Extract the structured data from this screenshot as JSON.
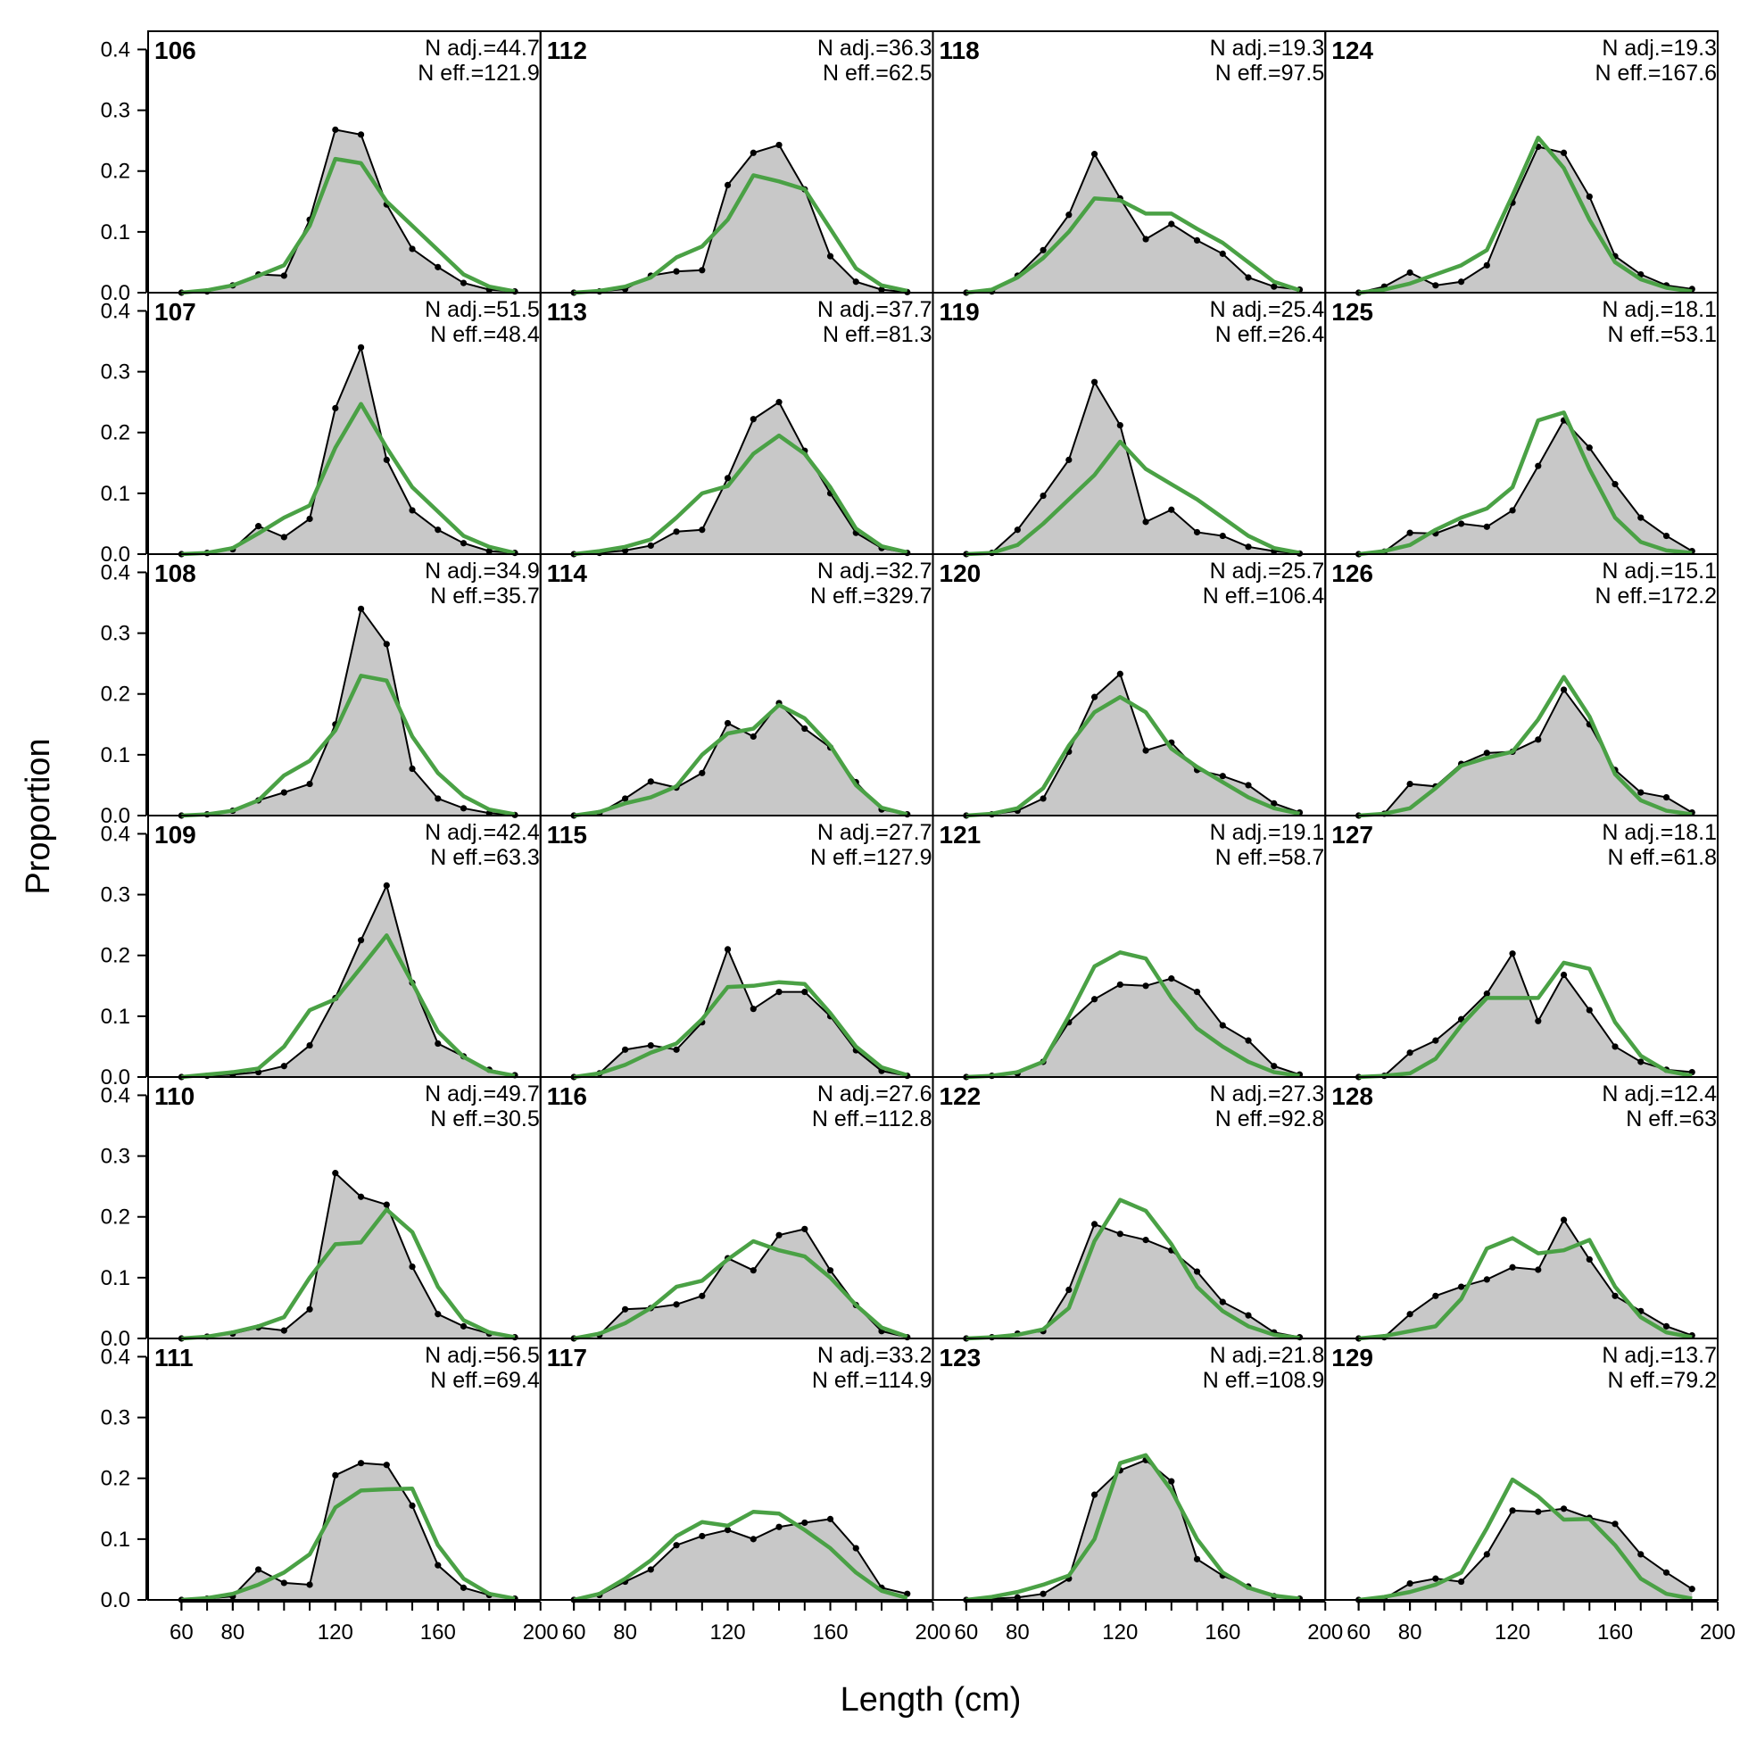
{
  "chart_data": {
    "type": "area",
    "xlabel": "Length (cm)",
    "ylabel": "Proportion",
    "xlim": [
      47,
      200
    ],
    "ylim": [
      0,
      0.43
    ],
    "x_ticks": [
      60,
      80,
      120,
      160,
      200
    ],
    "y_ticks": [
      "0.0",
      "0.1",
      "0.2",
      "0.3",
      "0.4"
    ],
    "x": [
      60,
      70,
      80,
      90,
      100,
      110,
      120,
      130,
      140,
      150,
      160,
      170,
      180,
      190
    ],
    "colors": {
      "observed_fill": "#c8c8c8",
      "observed_line": "#000000",
      "expected_line": "#4aa145",
      "zero_line": "#b4b4b4"
    },
    "grid": false,
    "series_legend": false,
    "panels": [
      {
        "label": "106",
        "n_adj": "N adj.=44.7",
        "n_eff": "N eff.=121.9",
        "observed": [
          0,
          0.002,
          0.012,
          0.03,
          0.028,
          0.12,
          0.268,
          0.26,
          0.145,
          0.072,
          0.042,
          0.016,
          0.005,
          0.002
        ],
        "expected": [
          0,
          0.004,
          0.012,
          0.028,
          0.045,
          0.11,
          0.22,
          0.213,
          0.15,
          0.11,
          0.07,
          0.03,
          0.01,
          0.002
        ]
      },
      {
        "label": "107",
        "n_adj": "N adj.=51.5",
        "n_eff": "N eff.=48.4",
        "observed": [
          0,
          0.002,
          0.008,
          0.046,
          0.028,
          0.058,
          0.24,
          0.34,
          0.155,
          0.072,
          0.04,
          0.018,
          0.005,
          0.002
        ],
        "expected": [
          0,
          0.002,
          0.01,
          0.034,
          0.06,
          0.08,
          0.175,
          0.247,
          0.175,
          0.11,
          0.07,
          0.03,
          0.012,
          0.002
        ]
      },
      {
        "label": "108",
        "n_adj": "N adj.=34.9",
        "n_eff": "N eff.=35.7",
        "observed": [
          0,
          0.002,
          0.008,
          0.025,
          0.038,
          0.052,
          0.15,
          0.34,
          0.282,
          0.077,
          0.028,
          0.012,
          0.004,
          0.001
        ],
        "expected": [
          0,
          0.002,
          0.008,
          0.025,
          0.066,
          0.09,
          0.14,
          0.23,
          0.222,
          0.13,
          0.07,
          0.032,
          0.01,
          0.002
        ]
      },
      {
        "label": "109",
        "n_adj": "N adj.=42.4",
        "n_eff": "N eff.=63.3",
        "observed": [
          0,
          0.002,
          0.004,
          0.008,
          0.018,
          0.052,
          0.13,
          0.225,
          0.315,
          0.155,
          0.055,
          0.034,
          0.012,
          0.003
        ],
        "expected": [
          0,
          0.004,
          0.008,
          0.014,
          0.05,
          0.11,
          0.128,
          0.18,
          0.233,
          0.155,
          0.075,
          0.033,
          0.01,
          0.002
        ]
      },
      {
        "label": "110",
        "n_adj": "N adj.=49.7",
        "n_eff": "N eff.=30.5",
        "observed": [
          0,
          0.003,
          0.008,
          0.018,
          0.013,
          0.048,
          0.272,
          0.233,
          0.22,
          0.118,
          0.04,
          0.02,
          0.008,
          0.002
        ],
        "expected": [
          0,
          0.003,
          0.01,
          0.02,
          0.035,
          0.1,
          0.155,
          0.158,
          0.212,
          0.175,
          0.085,
          0.03,
          0.01,
          0.002
        ]
      },
      {
        "label": "111",
        "n_adj": "N adj.=56.5",
        "n_eff": "N eff.=69.4",
        "observed": [
          0,
          0.002,
          0.006,
          0.05,
          0.028,
          0.025,
          0.205,
          0.225,
          0.222,
          0.155,
          0.057,
          0.02,
          0.008,
          0.002
        ],
        "expected": [
          0,
          0.003,
          0.01,
          0.025,
          0.045,
          0.075,
          0.152,
          0.18,
          0.182,
          0.183,
          0.09,
          0.035,
          0.01,
          0.002
        ]
      },
      {
        "label": "112",
        "n_adj": "N adj.=36.3",
        "n_eff": "N eff.=62.5",
        "observed": [
          0,
          0.002,
          0.006,
          0.028,
          0.035,
          0.037,
          0.177,
          0.23,
          0.243,
          0.17,
          0.06,
          0.018,
          0.005,
          0.001
        ],
        "expected": [
          0,
          0.003,
          0.01,
          0.025,
          0.058,
          0.076,
          0.12,
          0.193,
          0.183,
          0.17,
          0.105,
          0.04,
          0.012,
          0.003
        ]
      },
      {
        "label": "113",
        "n_adj": "N adj.=37.7",
        "n_eff": "N eff.=81.3",
        "observed": [
          0,
          0.002,
          0.006,
          0.014,
          0.037,
          0.04,
          0.125,
          0.222,
          0.25,
          0.17,
          0.1,
          0.035,
          0.01,
          0.002
        ],
        "expected": [
          0,
          0.005,
          0.012,
          0.024,
          0.06,
          0.1,
          0.112,
          0.165,
          0.195,
          0.165,
          0.11,
          0.042,
          0.013,
          0.003
        ]
      },
      {
        "label": "114",
        "n_adj": "N adj.=32.7",
        "n_eff": "N eff.=329.7",
        "observed": [
          0,
          0.004,
          0.028,
          0.056,
          0.046,
          0.07,
          0.152,
          0.13,
          0.185,
          0.143,
          0.112,
          0.055,
          0.01,
          0.002
        ],
        "expected": [
          0,
          0.006,
          0.02,
          0.03,
          0.048,
          0.1,
          0.135,
          0.143,
          0.182,
          0.16,
          0.115,
          0.05,
          0.013,
          0.002
        ]
      },
      {
        "label": "115",
        "n_adj": "N adj.=27.7",
        "n_eff": "N eff.=127.9",
        "observed": [
          0,
          0.006,
          0.045,
          0.052,
          0.045,
          0.09,
          0.21,
          0.112,
          0.14,
          0.14,
          0.1,
          0.044,
          0.01,
          0.002
        ],
        "expected": [
          0,
          0.006,
          0.02,
          0.04,
          0.055,
          0.095,
          0.148,
          0.15,
          0.156,
          0.153,
          0.105,
          0.05,
          0.016,
          0.003
        ]
      },
      {
        "label": "116",
        "n_adj": "N adj.=27.6",
        "n_eff": "N eff.=112.8",
        "observed": [
          0,
          0.006,
          0.048,
          0.05,
          0.056,
          0.07,
          0.132,
          0.112,
          0.17,
          0.18,
          0.112,
          0.055,
          0.012,
          0.002
        ],
        "expected": [
          0,
          0.008,
          0.025,
          0.05,
          0.085,
          0.095,
          0.13,
          0.16,
          0.145,
          0.135,
          0.1,
          0.055,
          0.018,
          0.003
        ]
      },
      {
        "label": "117",
        "n_adj": "N adj.=33.2",
        "n_eff": "N eff.=114.9",
        "observed": [
          0,
          0.008,
          0.03,
          0.05,
          0.09,
          0.105,
          0.115,
          0.1,
          0.12,
          0.127,
          0.133,
          0.085,
          0.02,
          0.01
        ],
        "expected": [
          0,
          0.01,
          0.035,
          0.065,
          0.105,
          0.128,
          0.122,
          0.145,
          0.142,
          0.115,
          0.085,
          0.045,
          0.015,
          0.003
        ]
      },
      {
        "label": "118",
        "n_adj": "N adj.=19.3",
        "n_eff": "N eff.=97.5",
        "observed": [
          0,
          0.002,
          0.028,
          0.07,
          0.128,
          0.228,
          0.155,
          0.088,
          0.113,
          0.086,
          0.064,
          0.025,
          0.01,
          0.005
        ],
        "expected": [
          0,
          0.005,
          0.025,
          0.057,
          0.1,
          0.155,
          0.152,
          0.13,
          0.13,
          0.105,
          0.082,
          0.05,
          0.018,
          0.004
        ]
      },
      {
        "label": "119",
        "n_adj": "N adj.=25.4",
        "n_eff": "N eff.=26.4",
        "observed": [
          0,
          0.002,
          0.04,
          0.096,
          0.155,
          0.283,
          0.212,
          0.053,
          0.073,
          0.036,
          0.03,
          0.012,
          0.005,
          0.001
        ],
        "expected": [
          0,
          0.002,
          0.015,
          0.05,
          0.09,
          0.13,
          0.185,
          0.14,
          0.115,
          0.09,
          0.06,
          0.03,
          0.01,
          0.002
        ]
      },
      {
        "label": "120",
        "n_adj": "N adj.=25.7",
        "n_eff": "N eff.=106.4",
        "observed": [
          0,
          0.002,
          0.008,
          0.028,
          0.105,
          0.195,
          0.233,
          0.107,
          0.12,
          0.075,
          0.065,
          0.05,
          0.02,
          0.005
        ],
        "expected": [
          0,
          0.003,
          0.012,
          0.045,
          0.115,
          0.17,
          0.195,
          0.17,
          0.11,
          0.08,
          0.055,
          0.03,
          0.012,
          0.003
        ]
      },
      {
        "label": "121",
        "n_adj": "N adj.=19.1",
        "n_eff": "N eff.=58.7",
        "observed": [
          0,
          0.002,
          0.006,
          0.025,
          0.09,
          0.128,
          0.152,
          0.15,
          0.162,
          0.14,
          0.085,
          0.06,
          0.018,
          0.004
        ],
        "expected": [
          0,
          0.002,
          0.008,
          0.025,
          0.1,
          0.182,
          0.205,
          0.195,
          0.13,
          0.08,
          0.05,
          0.025,
          0.008,
          0.002
        ]
      },
      {
        "label": "122",
        "n_adj": "N adj.=27.3",
        "n_eff": "N eff.=92.8",
        "observed": [
          0,
          0.002,
          0.008,
          0.012,
          0.08,
          0.188,
          0.172,
          0.162,
          0.145,
          0.11,
          0.06,
          0.038,
          0.01,
          0.002
        ],
        "expected": [
          0,
          0.002,
          0.006,
          0.015,
          0.05,
          0.16,
          0.228,
          0.21,
          0.155,
          0.085,
          0.045,
          0.02,
          0.006,
          0.001
        ]
      },
      {
        "label": "123",
        "n_adj": "N adj.=21.8",
        "n_eff": "N eff.=108.9",
        "observed": [
          0,
          0.002,
          0.004,
          0.01,
          0.035,
          0.173,
          0.213,
          0.23,
          0.195,
          0.067,
          0.04,
          0.022,
          0.006,
          0.002
        ],
        "expected": [
          0,
          0.005,
          0.013,
          0.025,
          0.04,
          0.1,
          0.225,
          0.238,
          0.18,
          0.1,
          0.045,
          0.02,
          0.007,
          0.002
        ]
      },
      {
        "label": "124",
        "n_adj": "N adj.=19.3",
        "n_eff": "N eff.=167.6",
        "observed": [
          0,
          0.01,
          0.033,
          0.012,
          0.018,
          0.045,
          0.148,
          0.24,
          0.23,
          0.158,
          0.06,
          0.03,
          0.012,
          0.006
        ],
        "expected": [
          0,
          0.005,
          0.015,
          0.03,
          0.045,
          0.07,
          0.16,
          0.255,
          0.205,
          0.12,
          0.05,
          0.022,
          0.008,
          0.002
        ]
      },
      {
        "label": "125",
        "n_adj": "N adj.=18.1",
        "n_eff": "N eff.=53.1",
        "observed": [
          0,
          0.004,
          0.035,
          0.034,
          0.05,
          0.045,
          0.072,
          0.145,
          0.22,
          0.175,
          0.115,
          0.06,
          0.03,
          0.005
        ],
        "expected": [
          0,
          0.005,
          0.015,
          0.04,
          0.06,
          0.075,
          0.11,
          0.22,
          0.233,
          0.14,
          0.06,
          0.02,
          0.006,
          0.002
        ]
      },
      {
        "label": "126",
        "n_adj": "N adj.=15.1",
        "n_eff": "N eff.=172.2",
        "observed": [
          0,
          0.003,
          0.052,
          0.048,
          0.085,
          0.103,
          0.105,
          0.125,
          0.207,
          0.15,
          0.075,
          0.038,
          0.03,
          0.005
        ],
        "expected": [
          0,
          0.003,
          0.012,
          0.045,
          0.082,
          0.095,
          0.105,
          0.158,
          0.228,
          0.163,
          0.068,
          0.025,
          0.008,
          0.002
        ]
      },
      {
        "label": "127",
        "n_adj": "N adj.=18.1",
        "n_eff": "N eff.=61.8",
        "observed": [
          0,
          0.002,
          0.04,
          0.06,
          0.095,
          0.137,
          0.203,
          0.092,
          0.168,
          0.11,
          0.05,
          0.025,
          0.012,
          0.008
        ],
        "expected": [
          0,
          0.002,
          0.006,
          0.03,
          0.085,
          0.13,
          0.13,
          0.13,
          0.188,
          0.178,
          0.09,
          0.035,
          0.01,
          0.002
        ]
      },
      {
        "label": "128",
        "n_adj": "N adj.=12.4",
        "n_eff": "N eff.=63",
        "observed": [
          0,
          0.002,
          0.04,
          0.07,
          0.085,
          0.097,
          0.117,
          0.113,
          0.195,
          0.13,
          0.07,
          0.045,
          0.02,
          0.005
        ],
        "expected": [
          0,
          0.004,
          0.012,
          0.02,
          0.065,
          0.148,
          0.165,
          0.14,
          0.145,
          0.162,
          0.085,
          0.035,
          0.01,
          0.002
        ]
      },
      {
        "label": "129",
        "n_adj": "N adj.=13.7",
        "n_eff": "N eff.=79.2",
        "observed": [
          0,
          0.002,
          0.027,
          0.035,
          0.03,
          0.075,
          0.147,
          0.145,
          0.15,
          0.135,
          0.125,
          0.075,
          0.045,
          0.018
        ],
        "expected": [
          0,
          0.005,
          0.013,
          0.025,
          0.045,
          0.118,
          0.198,
          0.17,
          0.132,
          0.133,
          0.09,
          0.035,
          0.01,
          0.002
        ]
      }
    ]
  }
}
